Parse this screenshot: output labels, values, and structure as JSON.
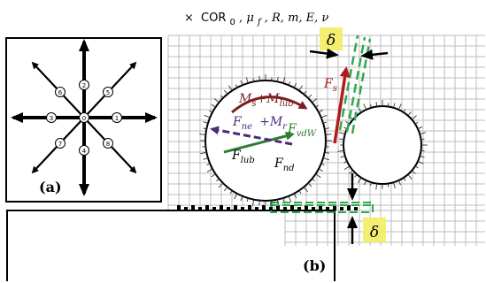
{
  "header": {
    "prefix": "×",
    "cor": "COR",
    "cor_sub": "0",
    "sep": " , ",
    "mu": "μ",
    "mu_sub": "f",
    "rest": ", R, m, E, ν"
  },
  "panel_a": {
    "label": "(a)",
    "directions": [
      "0",
      "1",
      "2",
      "3",
      "4",
      "5",
      "6",
      "7",
      "8"
    ]
  },
  "panel_b": {
    "label": "(b)",
    "delta_symbol": "δ",
    "forces": {
      "ms": "M",
      "ms_sub": "s",
      "plus1": "+",
      "mlub": "M",
      "mlub_sub": "lub",
      "fne": "F",
      "fne_sub": "ne",
      "plus2": "+",
      "mr": "M",
      "mr_sub": "r",
      "fvdw": "F",
      "fvdw_sub": "vdW",
      "flub": "F",
      "flub_sub": "lub",
      "fnd": "F",
      "fnd_sub": "nd",
      "fs": "F",
      "fs_sub": "s"
    }
  },
  "colors": {
    "moment_arrow": "#7a1f1f",
    "vdw_arrow": "#2e7d32",
    "ne_arrow": "#4a2c7a",
    "fs_arrow": "#b31b1b",
    "delta_highlight": "#f4ef72",
    "contact_dashes": "#2fa84f",
    "grid": "#bdbdbd"
  }
}
